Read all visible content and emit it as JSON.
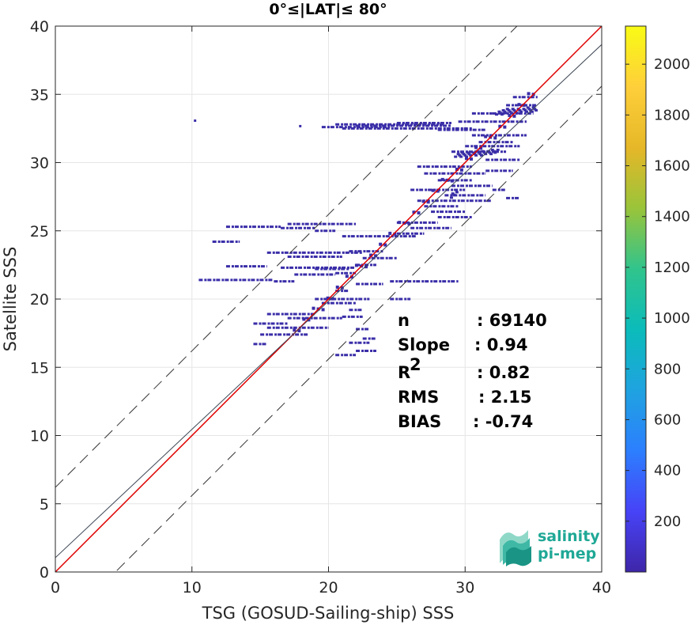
{
  "chart_data": {
    "type": "scatter",
    "title": "0°≤|LAT|≤ 80°",
    "xlabel": "TSG (GOSUD-Sailing-ship) SSS",
    "ylabel": "Satellite SSS",
    "xlim": [
      0,
      40
    ],
    "ylim": [
      0,
      40
    ],
    "x_ticks": [
      0,
      10,
      20,
      30,
      40
    ],
    "y_ticks": [
      0,
      5,
      10,
      15,
      20,
      25,
      30,
      35,
      40
    ],
    "grid": true,
    "points_description": "2D density histogram of collocated pairs",
    "density_color": "#3a2ea8",
    "density_segments": [
      [
        20.5,
        32.8,
        28.5,
        32.8
      ],
      [
        21,
        32.5,
        30.5,
        32.5
      ],
      [
        22,
        32.7,
        29,
        32.7
      ],
      [
        19.5,
        32.6,
        24.5,
        32.6
      ],
      [
        28,
        32.4,
        31.5,
        32.4
      ],
      [
        25,
        32.9,
        29,
        32.9
      ],
      [
        29.5,
        33.0,
        34.5,
        33.0
      ],
      [
        30.5,
        32.0,
        34.5,
        32.0
      ],
      [
        31,
        31.5,
        33.5,
        31.5
      ],
      [
        29,
        30.8,
        33,
        30.8
      ],
      [
        30,
        31.2,
        34,
        31.2
      ],
      [
        32,
        33.6,
        35,
        33.6
      ],
      [
        33,
        34.2,
        35.2,
        34.2
      ],
      [
        33.5,
        34.8,
        35.3,
        34.8
      ],
      [
        31.5,
        30.2,
        34,
        30.2
      ],
      [
        26.5,
        29.7,
        30.5,
        29.7
      ],
      [
        27,
        29.2,
        31.5,
        29.2
      ],
      [
        28,
        28.7,
        30.5,
        28.7
      ],
      [
        29,
        28.3,
        32,
        28.3
      ],
      [
        26,
        28.0,
        30,
        28.0
      ],
      [
        28.5,
        27.6,
        31.5,
        27.6
      ],
      [
        26.5,
        27.2,
        32,
        27.2
      ],
      [
        27,
        26.8,
        29.5,
        26.8
      ],
      [
        27.5,
        26.4,
        30,
        26.4
      ],
      [
        28,
        26.0,
        30.5,
        26.0
      ],
      [
        25,
        25.6,
        28,
        25.6
      ],
      [
        26,
        25.2,
        29,
        25.2
      ],
      [
        25,
        24.8,
        27,
        24.8
      ],
      [
        21,
        24.6,
        26.5,
        24.6
      ],
      [
        17,
        25.5,
        22,
        25.5
      ],
      [
        12.5,
        25.3,
        16.5,
        25.3
      ],
      [
        16.5,
        25.2,
        19,
        25.2
      ],
      [
        19,
        25.0,
        20.5,
        25.0
      ],
      [
        11.5,
        24.2,
        13.5,
        24.2
      ],
      [
        15.5,
        23.4,
        22.5,
        23.4
      ],
      [
        17,
        23.1,
        21,
        23.1
      ],
      [
        21.5,
        23.5,
        24,
        23.5
      ],
      [
        22.5,
        23.0,
        25,
        23.0
      ],
      [
        12.5,
        22.4,
        15.5,
        22.4
      ],
      [
        16.5,
        22.3,
        22,
        22.3
      ],
      [
        19,
        22.2,
        21.5,
        22.2
      ],
      [
        22,
        22.5,
        23.5,
        22.5
      ],
      [
        17.5,
        21.8,
        20.5,
        21.8
      ],
      [
        20.5,
        21.9,
        22,
        21.9
      ],
      [
        10.5,
        21.4,
        16,
        21.4
      ],
      [
        16,
        21.3,
        17.5,
        21.3
      ],
      [
        24.5,
        21.3,
        29.5,
        21.3
      ],
      [
        22,
        21.1,
        24,
        21.1
      ],
      [
        20.5,
        20.6,
        21.5,
        20.6
      ],
      [
        24.5,
        20.0,
        26,
        20.0
      ],
      [
        19,
        20.0,
        23,
        20.0
      ],
      [
        19.5,
        19.7,
        22,
        19.7
      ],
      [
        21.5,
        19.2,
        22.5,
        19.2
      ],
      [
        15.5,
        18.9,
        19,
        18.9
      ],
      [
        17,
        18.6,
        21,
        18.6
      ],
      [
        21,
        18.7,
        22.5,
        18.7
      ],
      [
        14.5,
        18.2,
        17,
        18.2
      ],
      [
        15.5,
        17.9,
        20,
        17.9
      ],
      [
        22,
        17.8,
        23,
        17.8
      ],
      [
        15,
        17.4,
        18.5,
        17.4
      ],
      [
        22.5,
        17.1,
        23.5,
        17.1
      ],
      [
        21.5,
        16.8,
        23,
        16.8
      ],
      [
        22,
        16.2,
        23.5,
        16.2
      ],
      [
        20.5,
        15.9,
        22,
        15.9
      ],
      [
        14.5,
        16.7,
        15.5,
        16.7
      ],
      [
        31.5,
        29.4,
        33.5,
        29.4
      ],
      [
        32,
        28.0,
        33,
        28.0
      ],
      [
        33,
        27.4,
        34,
        27.4
      ],
      [
        30.5,
        33.6,
        32,
        33.6
      ]
    ],
    "lines": [
      {
        "type": "identity",
        "intercept": 0,
        "slope": 1,
        "color": "#e00000",
        "style": "solid"
      },
      {
        "type": "regression",
        "intercept": 1.05,
        "slope": 0.94,
        "color": "#3c4654",
        "style": "solid"
      },
      {
        "type": "upper-bound",
        "intercept": 6.2,
        "slope": 1,
        "color": "#333333",
        "style": "dashed"
      },
      {
        "type": "lower-bound",
        "intercept": -4.4,
        "slope": 1,
        "color": "#333333",
        "style": "dashed"
      }
    ],
    "stats": [
      {
        "label": "n",
        "value": ": 69140"
      },
      {
        "label": "Slope",
        "value": ": 0.94"
      },
      {
        "label": "R",
        "sup": "2",
        "value": ": 0.82"
      },
      {
        "label": "RMS",
        "value": ": 2.15"
      },
      {
        "label": "BIAS",
        "value": ": -0.74"
      }
    ],
    "colorbar": {
      "range": [
        0,
        2150
      ],
      "ticks": [
        200,
        400,
        600,
        800,
        1000,
        1200,
        1400,
        1600,
        1800,
        2000
      ],
      "colormap": [
        "#3e26a8",
        "#4743f7",
        "#2c7ffe",
        "#1fa3e0",
        "#0bbcba",
        "#31c48c",
        "#9ac43a",
        "#e6b728",
        "#fecf3a",
        "#f9fb15"
      ]
    }
  },
  "logo": {
    "line1": "salinity",
    "line2": "pi-mep",
    "color": "#1fa896"
  }
}
